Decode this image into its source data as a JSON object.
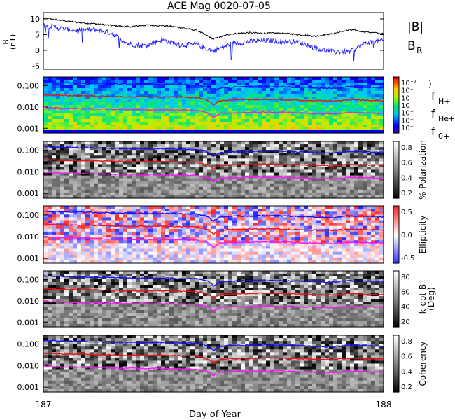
{
  "title": "ACE Mag 0020-07-05",
  "colors": {
    "total_field": "#000000",
    "radial_field": "#2020ff",
    "f_h": "#1010ff",
    "f_he": "#ee1010",
    "f_o": "#ff10ff"
  },
  "chart_data": [
    {
      "type": "line",
      "panel": "field",
      "ylabel_main": "B",
      "ylabel_unit": "(nT)",
      "yticks": [
        "10",
        "5",
        "0",
        "-5"
      ],
      "ylim": [
        -6,
        12
      ],
      "series": [
        {
          "name": "|B|",
          "x": [
            187.0,
            187.05,
            187.1,
            187.15,
            187.2,
            187.25,
            187.3,
            187.35,
            187.4,
            187.45,
            187.5,
            187.55,
            187.6,
            187.65,
            187.7,
            187.75,
            187.8,
            187.85,
            187.9,
            187.95,
            188.0
          ],
          "values": [
            10.3,
            9.6,
            8.9,
            8.5,
            7.9,
            7.5,
            8.0,
            7.9,
            7.3,
            6.4,
            3.6,
            5.2,
            5.6,
            5.4,
            5.5,
            5.0,
            4.5,
            5.3,
            6.5,
            5.9,
            5.2
          ]
        },
        {
          "name": "B",
          "subscript": "R",
          "x": [
            187.0,
            187.05,
            187.1,
            187.15,
            187.2,
            187.25,
            187.3,
            187.35,
            187.4,
            187.45,
            187.5,
            187.55,
            187.6,
            187.65,
            187.7,
            187.75,
            187.8,
            187.85,
            187.9,
            187.95,
            188.0
          ],
          "values": [
            8.2,
            7.0,
            6.3,
            6.6,
            5.5,
            2.0,
            1.5,
            3.4,
            1.7,
            1.8,
            -0.2,
            2.0,
            2.8,
            3.0,
            2.9,
            2.7,
            0.7,
            -0.5,
            -0.4,
            2.4,
            3.1
          ]
        }
      ]
    },
    {
      "type": "heatmap",
      "panel": "power",
      "colorbar": "rainbow",
      "colorbar_ticks": [
        "10⁻²",
        "10⁻",
        "10⁻",
        "10⁻",
        "10⁻",
        "10⁻",
        "10⁻"
      ],
      "colorbar_label": ")",
      "yticks": [
        "0.100",
        "0.010",
        "0.001"
      ],
      "legend": [
        {
          "text": "f",
          "sub": "H+"
        },
        {
          "text": "f",
          "sub": "He+"
        },
        {
          "text": "f",
          "sub": "0+"
        }
      ]
    },
    {
      "type": "heatmap",
      "panel": "polarization",
      "colorbar": "gray",
      "colorbar_label": "% Polarization",
      "colorbar_ticks": [
        "0.8",
        "0.6",
        "0.4",
        "0.2"
      ],
      "yticks": [
        "0.100",
        "0.010",
        "0.001"
      ]
    },
    {
      "type": "heatmap",
      "panel": "ellipticity",
      "colorbar": "bwr",
      "colorbar_label": "Ellipticity",
      "colorbar_ticks": [
        "0.5",
        "0.0",
        "-0.5"
      ],
      "yticks": [
        "0.100",
        "0.010",
        "0.001"
      ]
    },
    {
      "type": "heatmap",
      "panel": "kdotb",
      "colorbar": "gray",
      "colorbar_label": "k dot B",
      "colorbar_label2": "(Deg)",
      "colorbar_ticks": [
        "80",
        "60",
        "40",
        "20"
      ],
      "yticks": [
        "0.100",
        "0.010",
        "0.001"
      ]
    },
    {
      "type": "heatmap",
      "panel": "coherency",
      "colorbar": "gray",
      "colorbar_label": "Coherency",
      "colorbar_ticks": [
        "0.8",
        "0.6",
        "0.4",
        "0.2"
      ],
      "yticks": [
        "0.100",
        "0.010",
        "0.001"
      ]
    }
  ],
  "frequency_lines": {
    "x": [
      187.0,
      187.05,
      187.1,
      187.15,
      187.2,
      187.25,
      187.3,
      187.35,
      187.4,
      187.45,
      187.48,
      187.5,
      187.52,
      187.55,
      187.6,
      187.65,
      187.7,
      187.75,
      187.8,
      187.85,
      187.9,
      187.95,
      188.0
    ],
    "f_h": [
      0.15,
      0.14,
      0.135,
      0.13,
      0.125,
      0.12,
      0.118,
      0.12,
      0.115,
      0.11,
      0.09,
      0.05,
      0.08,
      0.085,
      0.09,
      0.092,
      0.09,
      0.085,
      0.08,
      0.075,
      0.09,
      0.085,
      0.08
    ],
    "f_he": [
      0.038,
      0.035,
      0.034,
      0.033,
      0.031,
      0.03,
      0.03,
      0.03,
      0.029,
      0.028,
      0.022,
      0.013,
      0.02,
      0.021,
      0.022,
      0.023,
      0.022,
      0.021,
      0.02,
      0.019,
      0.022,
      0.021,
      0.02
    ],
    "f_o": [
      0.0095,
      0.0088,
      0.0085,
      0.0082,
      0.0078,
      0.0075,
      0.0074,
      0.0075,
      0.0072,
      0.0069,
      0.0056,
      0.0032,
      0.005,
      0.0053,
      0.0056,
      0.0058,
      0.0056,
      0.0053,
      0.005,
      0.0047,
      0.0056,
      0.0053,
      0.005
    ]
  },
  "x_axis": {
    "label": "Day of Year",
    "xlim": [
      187,
      188
    ],
    "ticks": [
      "187",
      "188"
    ]
  }
}
